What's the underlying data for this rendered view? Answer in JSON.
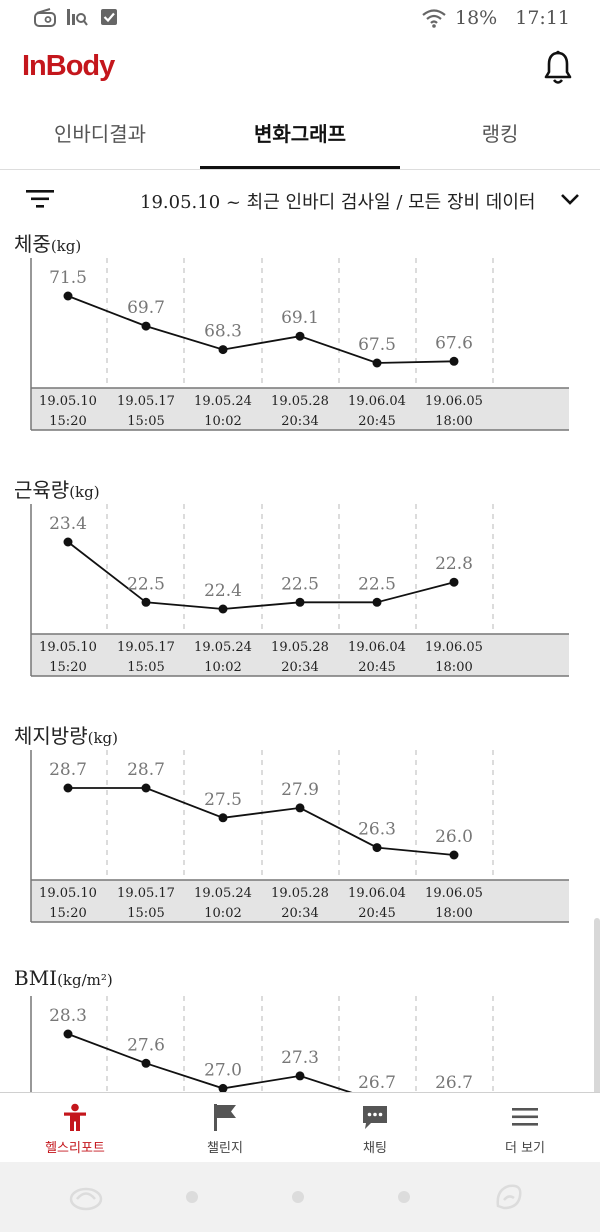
{
  "status_bar": {
    "battery": "18%",
    "time": "17:11"
  },
  "app": {
    "logo": "InBody"
  },
  "tabs": [
    {
      "label": "인바디결과",
      "active": false
    },
    {
      "label": "변화그래프",
      "active": true
    },
    {
      "label": "랭킹",
      "active": false
    }
  ],
  "filter": {
    "text": "19.05.10 ~ 최근 인바디 검사일 / 모든 장비 데이터"
  },
  "dates": [
    {
      "date": "19.05.10",
      "time": "15:20"
    },
    {
      "date": "19.05.17",
      "time": "15:05"
    },
    {
      "date": "19.05.24",
      "time": "10:02"
    },
    {
      "date": "19.05.28",
      "time": "20:34"
    },
    {
      "date": "19.06.04",
      "time": "20:45"
    },
    {
      "date": "19.06.05",
      "time": "18:00"
    }
  ],
  "chart_data": [
    {
      "type": "line",
      "title": "체중",
      "unit": "(kg)",
      "x": [
        "19.05.10 15:20",
        "19.05.17 15:05",
        "19.05.24 10:02",
        "19.05.28 20:34",
        "19.06.04 20:45",
        "19.06.05 18:00"
      ],
      "labels": [
        "71.5",
        "69.7",
        "68.3",
        "69.1",
        "67.5",
        "67.6"
      ],
      "values": [
        71.5,
        69.7,
        68.3,
        69.1,
        67.5,
        67.6
      ]
    },
    {
      "type": "line",
      "title": "근육량",
      "unit": "(kg)",
      "x": [
        "19.05.10 15:20",
        "19.05.17 15:05",
        "19.05.24 10:02",
        "19.05.28 20:34",
        "19.06.04 20:45",
        "19.06.05 18:00"
      ],
      "labels": [
        "23.4",
        "22.5",
        "22.4",
        "22.5",
        "22.5",
        "22.8"
      ],
      "values": [
        23.4,
        22.5,
        22.4,
        22.5,
        22.5,
        22.8
      ]
    },
    {
      "type": "line",
      "title": "체지방량",
      "unit": "(kg)",
      "x": [
        "19.05.10 15:20",
        "19.05.17 15:05",
        "19.05.24 10:02",
        "19.05.28 20:34",
        "19.06.04 20:45",
        "19.06.05 18:00"
      ],
      "labels": [
        "28.7",
        "28.7",
        "27.5",
        "27.9",
        "26.3",
        "26.0"
      ],
      "values": [
        28.7,
        28.7,
        27.5,
        27.9,
        26.3,
        26.0
      ]
    },
    {
      "type": "line",
      "title": "BMI",
      "unit": "(kg/m²)",
      "x": [
        "19.05.10 15:20",
        "19.05.17 15:05",
        "19.05.24 10:02",
        "19.05.28 20:34",
        "19.06.04 20:45",
        "19.06.05 18:00"
      ],
      "labels": [
        "28.3",
        "27.6",
        "27.0",
        "27.3",
        "26.7",
        "26.7"
      ],
      "values": [
        28.3,
        27.6,
        27.0,
        27.3,
        26.7,
        26.7
      ]
    }
  ],
  "bottom_nav": [
    {
      "label": "헬스리포트",
      "icon": "person-icon",
      "active": true
    },
    {
      "label": "챌린지",
      "icon": "flag-icon",
      "active": false
    },
    {
      "label": "채팅",
      "icon": "chat-icon",
      "active": false
    },
    {
      "label": "더 보기",
      "icon": "menu-icon",
      "active": false
    }
  ],
  "colors": {
    "brand": "#c4161c",
    "line": "#111111",
    "axis_band": "#e4e4e4",
    "value_label": "#777777"
  }
}
